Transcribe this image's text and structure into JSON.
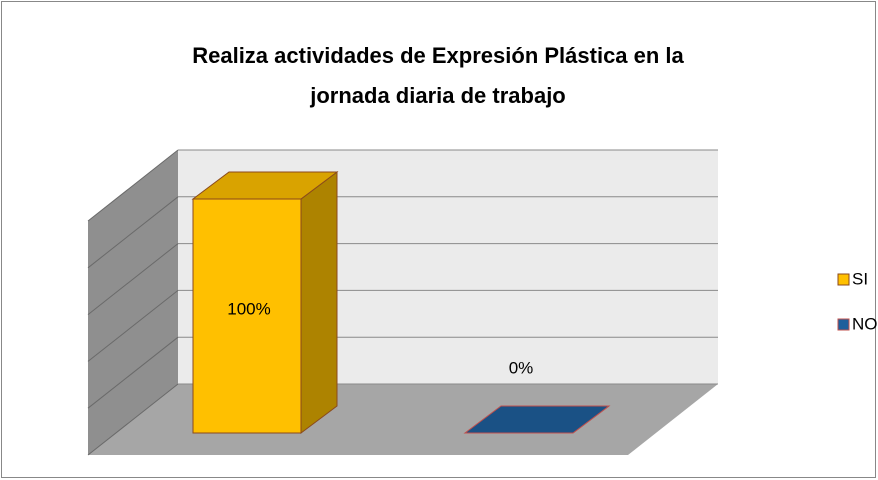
{
  "chart_data": {
    "type": "bar3d",
    "title": [
      "Realiza actividades de Expresión Plástica en la",
      "jornada diaria de trabajo"
    ],
    "categories": [
      null
    ],
    "series": [
      {
        "name": "SI",
        "color": "#ffc000",
        "values": [
          100
        ],
        "value_labels": [
          "100%"
        ]
      },
      {
        "name": "NO",
        "color": "#1f5f9c",
        "values": [
          0
        ],
        "value_labels": [
          "0%"
        ]
      }
    ],
    "ylim": [
      0,
      100
    ],
    "yticks": [
      0,
      20,
      40,
      60,
      80,
      100
    ],
    "grid": true,
    "legend": "right"
  }
}
